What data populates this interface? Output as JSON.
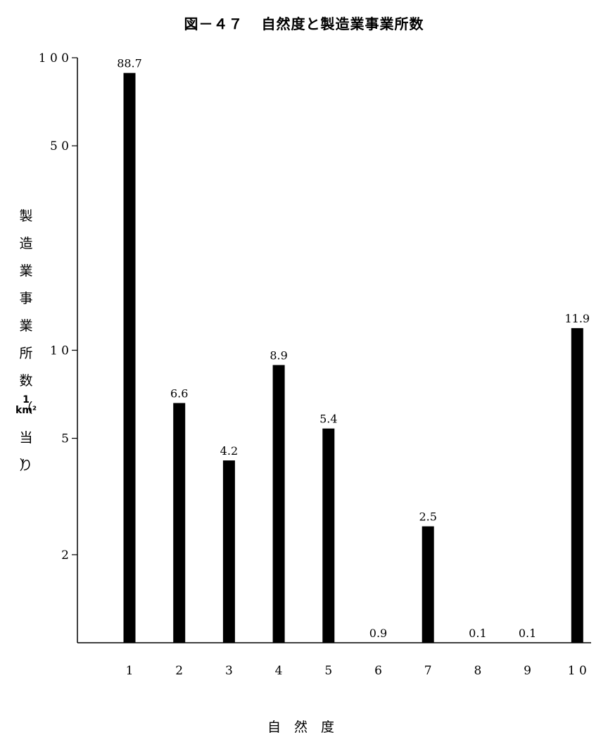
{
  "title": {
    "figure_no": "図－４７",
    "text": "自然度と製造業事業所数"
  },
  "chart_data": {
    "type": "bar",
    "title": "図－４７ 自然度と製造業事業所数",
    "xlabel": "自　然　度",
    "ylabel": "製造業事業所数（1km²当り）",
    "ylabel_chars": [
      "製",
      "造",
      "業",
      "事",
      "業",
      "所",
      "数（"
    ],
    "ylabel_unit_lines": [
      "1",
      "km²",
      "当り",
      "）"
    ],
    "yscale": "log",
    "ylim": [
      1,
      100
    ],
    "yticks": [
      {
        "value": 100,
        "label": "1 0 0"
      },
      {
        "value": 50,
        "label": "5 0"
      },
      {
        "value": 10,
        "label": "1 0"
      },
      {
        "value": 5,
        "label": "5"
      },
      {
        "value": 2,
        "label": "2"
      }
    ],
    "categories": [
      "1",
      "2",
      "3",
      "4",
      "5",
      "6",
      "7",
      "8",
      "9",
      "1 0"
    ],
    "values": [
      88.7,
      6.6,
      4.2,
      8.9,
      5.4,
      0.9,
      2.5,
      0.1,
      0.1,
      11.9
    ],
    "value_labels": [
      "88.7",
      "6.6",
      "4.2",
      "8.9",
      "5.4",
      "0.9",
      "2.5",
      "0.1",
      "0.1",
      "11.9"
    ],
    "bar_color": "#000000",
    "grid": false,
    "legend": "none"
  }
}
